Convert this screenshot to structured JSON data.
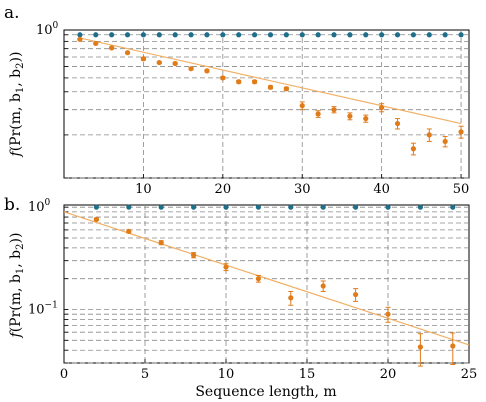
{
  "colors": {
    "blue": "#1f6f8b",
    "orange": "#e07b1a",
    "fit": "#f2b066",
    "grid": "#888888"
  },
  "shared": {
    "ylabel_prefix": "f",
    "ylabel": "(Pr(m, b",
    "ylabel_sub1": "1",
    "ylabel_mid": ", b",
    "ylabel_sub2": "2",
    "ylabel_suffix": "))",
    "xlabel": "Sequence length,  m"
  },
  "chart_data": [
    {
      "panel_label": "a.",
      "type": "scatter",
      "yscale": "log",
      "xlim": [
        0,
        51
      ],
      "ylim": [
        0.1,
        1.08
      ],
      "xticks": [
        10,
        20,
        30,
        40,
        50
      ],
      "xtick_labels": [
        "10",
        "20",
        "30",
        "40",
        "50"
      ],
      "ytick_label": {
        "base": "10",
        "exp": "0"
      },
      "ygrid": [
        1.0,
        0.9,
        0.8,
        0.7,
        0.6,
        0.5,
        0.4,
        0.3,
        0.2,
        0.1
      ],
      "series": [
        {
          "role": "blue",
          "x": [
            2,
            4,
            6,
            8,
            10,
            12,
            14,
            16,
            18,
            20,
            22,
            24,
            26,
            28,
            30,
            32,
            34,
            36,
            38,
            40,
            42,
            44,
            46,
            48,
            50
          ],
          "y": [
            1,
            1,
            1,
            1,
            1,
            1,
            1,
            1,
            1,
            1,
            1,
            1,
            1,
            1,
            1,
            1,
            1,
            1,
            1,
            1,
            1,
            1,
            1,
            1,
            1
          ]
        },
        {
          "role": "orange",
          "x": [
            2,
            4,
            6,
            8,
            10,
            12,
            14,
            16,
            18,
            20,
            22,
            24,
            26,
            28,
            30,
            32,
            34,
            36,
            38,
            40,
            42,
            44,
            46,
            48,
            50
          ],
          "y": [
            0.93,
            0.87,
            0.81,
            0.75,
            0.68,
            0.64,
            0.63,
            0.58,
            0.56,
            0.5,
            0.47,
            0.47,
            0.43,
            0.42,
            0.32,
            0.28,
            0.3,
            0.27,
            0.26,
            0.31,
            0.24,
            0.16,
            0.2,
            0.18,
            0.21
          ],
          "err": [
            0.01,
            0.01,
            0.01,
            0.01,
            0.015,
            0.01,
            0.01,
            0.01,
            0.01,
            0.01,
            0.01,
            0.01,
            0.01,
            0.01,
            0.02,
            0.015,
            0.015,
            0.015,
            0.015,
            0.02,
            0.02,
            0.015,
            0.02,
            0.015,
            0.02
          ]
        }
      ],
      "fit": {
        "x": [
          2,
          50
        ],
        "y": [
          0.95,
          0.24
        ]
      }
    },
    {
      "panel_label": "b.",
      "type": "scatter",
      "yscale": "log",
      "xlim": [
        0,
        25
      ],
      "ylim": [
        0.03,
        1.05
      ],
      "xticks": [
        0,
        5,
        10,
        15,
        20,
        25
      ],
      "xtick_labels": [
        "0",
        "5",
        "10",
        "15",
        "20",
        "25"
      ],
      "ytick_labels": [
        {
          "value": 1,
          "base": "10",
          "exp": "0"
        },
        {
          "value": 0.1,
          "base": "10",
          "exp": "−1"
        }
      ],
      "ygrid": [
        1.0,
        0.9,
        0.8,
        0.7,
        0.6,
        0.5,
        0.4,
        0.3,
        0.2,
        0.1,
        0.09,
        0.08,
        0.07,
        0.06,
        0.05,
        0.04,
        0.03
      ],
      "series": [
        {
          "role": "blue",
          "x": [
            2,
            4,
            6,
            8,
            10,
            12,
            14,
            16,
            18,
            20,
            22,
            24
          ],
          "y": [
            1,
            1,
            1,
            1,
            1,
            1,
            1,
            1,
            1,
            1,
            1,
            1
          ]
        },
        {
          "role": "orange",
          "x": [
            2,
            4,
            6,
            8,
            10,
            12,
            14,
            16,
            18,
            20,
            22,
            24
          ],
          "y": [
            0.76,
            0.58,
            0.45,
            0.34,
            0.26,
            0.2,
            0.13,
            0.17,
            0.14,
            0.09,
            0.043,
            0.044
          ],
          "err": [
            0.02,
            0.02,
            0.02,
            0.02,
            0.02,
            0.015,
            0.02,
            0.02,
            0.02,
            0.015,
            0.015,
            0.015
          ]
        }
      ],
      "fit": {
        "x": [
          0,
          25
        ],
        "y": [
          0.9,
          0.045
        ]
      }
    }
  ]
}
